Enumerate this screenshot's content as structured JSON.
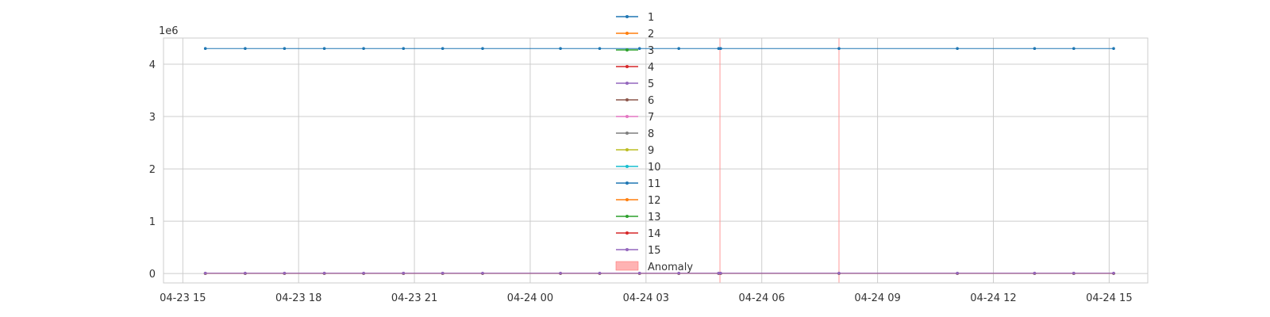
{
  "chart_data": {
    "type": "line",
    "offset_label": "1e6",
    "ylim": [
      -0.18,
      4.5
    ],
    "yticks": [
      0,
      1,
      2,
      3,
      4
    ],
    "xlim": [
      "2024-04-23 14:30",
      "2024-04-24 16:00"
    ],
    "xtick_labels": [
      "04-23 15",
      "04-23 18",
      "04-23 21",
      "04-24 00",
      "04-24 03",
      "04-24 06",
      "04-24 09",
      "04-24 12",
      "04-24 15"
    ],
    "xticks": [
      "2024-04-23 15:00",
      "2024-04-23 18:00",
      "2024-04-23 21:00",
      "2024-04-24 00:00",
      "2024-04-24 03:00",
      "2024-04-24 06:00",
      "2024-04-24 09:00",
      "2024-04-24 12:00",
      "2024-04-24 15:00"
    ],
    "grid": true,
    "legend_location": "upper center",
    "x": [
      "2024-04-23 15:35",
      "2024-04-23 16:37",
      "2024-04-23 17:38",
      "2024-04-23 18:40",
      "2024-04-23 19:41",
      "2024-04-23 20:43",
      "2024-04-23 21:44",
      "2024-04-23 22:46",
      "2024-04-24 00:47",
      "2024-04-24 01:48",
      "2024-04-24 02:50",
      "2024-04-24 03:51",
      "2024-04-24 04:53",
      "2024-04-24 04:56",
      "2024-04-24 08:00",
      "2024-04-24 11:04",
      "2024-04-24 13:04",
      "2024-04-24 14:05",
      "2024-04-24 15:07"
    ],
    "series": [
      {
        "name": "1",
        "color": "#1f77b4",
        "values": [
          4.3,
          4.3,
          4.3,
          4.3,
          4.3,
          4.3,
          4.3,
          4.3,
          4.3,
          4.3,
          4.3,
          4.3,
          4.3,
          4.3,
          4.3,
          4.3,
          4.3,
          4.3,
          4.3
        ]
      },
      {
        "name": "2",
        "color": "#ff7f0e",
        "values": [
          0.002,
          0.002,
          0.002,
          0.002,
          0.002,
          0.002,
          0.002,
          0.002,
          0.002,
          0.002,
          0.002,
          0.002,
          0.002,
          0.002,
          0.002,
          0.002,
          0.002,
          0.002,
          0.002
        ]
      },
      {
        "name": "3",
        "color": "#2ca02c",
        "values": [
          0.001,
          0.001,
          0.001,
          0.001,
          0.001,
          0.001,
          0.001,
          0.001,
          0.001,
          0.001,
          0.001,
          0.001,
          0.001,
          0.001,
          0.001,
          0.001,
          0.001,
          0.001,
          0.001
        ]
      },
      {
        "name": "4",
        "color": "#d62728",
        "values": [
          0.001,
          0.001,
          0.001,
          0.001,
          0.001,
          0.001,
          0.001,
          0.001,
          0.001,
          0.001,
          0.001,
          0.001,
          0.001,
          0.001,
          0.001,
          0.001,
          0.001,
          0.001,
          0.001
        ]
      },
      {
        "name": "5",
        "color": "#9467bd",
        "values": [
          0.002,
          0.002,
          0.002,
          0.002,
          0.002,
          0.002,
          0.002,
          0.002,
          0.002,
          0.002,
          0.002,
          0.002,
          0.002,
          0.002,
          0.002,
          0.002,
          0.002,
          0.002,
          0.002
        ]
      },
      {
        "name": "6",
        "color": "#8c564b",
        "values": [
          0.003,
          0.003,
          0.003,
          0.003,
          0.003,
          0.003,
          0.003,
          0.003,
          0.003,
          0.003,
          0.003,
          0.003,
          0.003,
          0.003,
          0.003,
          0.003,
          0.003,
          0.003,
          0.003
        ]
      },
      {
        "name": "7",
        "color": "#e377c2",
        "values": [
          0.004,
          0.004,
          0.004,
          0.004,
          0.004,
          0.004,
          0.004,
          0.004,
          0.004,
          0.004,
          0.004,
          0.004,
          0.004,
          0.004,
          0.004,
          0.004,
          0.004,
          0.004,
          0.004
        ]
      },
      {
        "name": "8",
        "color": "#7f7f7f",
        "values": [
          0.002,
          0.002,
          0.002,
          0.002,
          0.002,
          0.002,
          0.002,
          0.002,
          0.002,
          0.002,
          0.002,
          0.002,
          0.002,
          0.002,
          0.002,
          0.002,
          0.002,
          0.002,
          0.002
        ]
      },
      {
        "name": "9",
        "color": "#bcbd22",
        "values": [
          0.001,
          0.001,
          0.001,
          0.001,
          0.001,
          0.001,
          0.001,
          0.001,
          0.001,
          0.001,
          0.001,
          0.001,
          0.001,
          0.001,
          0.001,
          0.001,
          0.001,
          0.001,
          0.001
        ]
      },
      {
        "name": "10",
        "color": "#17becf",
        "values": [
          0.001,
          0.001,
          0.001,
          0.001,
          0.001,
          0.001,
          0.001,
          0.001,
          0.001,
          0.001,
          0.001,
          0.001,
          0.001,
          0.001,
          0.001,
          0.001,
          0.001,
          0.001,
          0.001
        ]
      },
      {
        "name": "11",
        "color": "#1f77b4",
        "values": [
          0.002,
          0.002,
          0.002,
          0.002,
          0.002,
          0.002,
          0.002,
          0.002,
          0.002,
          0.002,
          0.002,
          0.002,
          0.002,
          0.002,
          0.002,
          0.002,
          0.002,
          0.002,
          0.002
        ]
      },
      {
        "name": "12",
        "color": "#ff7f0e",
        "values": [
          0.001,
          0.001,
          0.001,
          0.001,
          0.001,
          0.001,
          0.001,
          0.001,
          0.001,
          0.001,
          0.001,
          0.001,
          0.001,
          0.001,
          0.001,
          0.001,
          0.001,
          0.001,
          0.001
        ]
      },
      {
        "name": "13",
        "color": "#2ca02c",
        "values": [
          0.002,
          0.002,
          0.002,
          0.002,
          0.002,
          0.002,
          0.002,
          0.002,
          0.002,
          0.002,
          0.002,
          0.002,
          0.002,
          0.002,
          0.002,
          0.002,
          0.002,
          0.002,
          0.002
        ]
      },
      {
        "name": "14",
        "color": "#d62728",
        "values": [
          0.003,
          0.003,
          0.003,
          0.003,
          0.003,
          0.003,
          0.003,
          0.003,
          0.003,
          0.003,
          0.003,
          0.003,
          0.003,
          0.003,
          0.003,
          0.003,
          0.003,
          0.003,
          0.003
        ]
      },
      {
        "name": "15",
        "color": "#9467bd",
        "values": [
          0.006,
          0.006,
          0.006,
          0.006,
          0.006,
          0.006,
          0.006,
          0.006,
          0.006,
          0.006,
          0.006,
          0.006,
          0.006,
          0.006,
          0.006,
          0.006,
          0.006,
          0.006,
          0.006
        ]
      }
    ],
    "anomaly": {
      "name": "Anomaly",
      "color": "#ff9999",
      "x": [
        "2024-04-24 04:55",
        "2024-04-24 08:00"
      ]
    }
  }
}
